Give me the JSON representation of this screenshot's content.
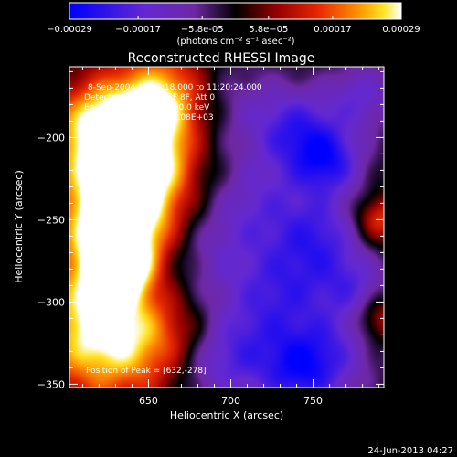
{
  "chart_data": {
    "type": "heatmap",
    "colorbar": {
      "ticks": [
        "-0.00029",
        "-0.00017",
        "-5.8e-05",
        "5.8e-05",
        "0.00017",
        "0.00029"
      ],
      "range": [
        -0.00029,
        0.00029
      ],
      "units": "(photons cm⁻² s⁻¹ asec⁻²)",
      "colormap": "blue-purple-black-red-yellow-white"
    },
    "title": "Reconstructed RHESSI Image",
    "info_lines": [
      "8-Sep-2004 11:17:18.000 to 11:20:24.000",
      "Detectors: 4F 5F 6F 7F 8F, Att 0",
      "Energy Range: 25.0 - 50.0 keV",
      "Clean    Total counts: 5.08E+03"
    ],
    "peak_label": "Position of Peak = [632,-278]",
    "peak": [
      632,
      -278
    ],
    "xlabel": "Heliocentric X (arcsec)",
    "ylabel": "Heliocentric Y (arcsec)",
    "xlim": [
      602,
      793
    ],
    "ylim": [
      -352,
      -157
    ],
    "x_ticks": [
      650,
      700,
      750
    ],
    "y_ticks": [
      -200,
      -250,
      -300,
      -350
    ],
    "footer_date": "24-Jun-2013 04:27",
    "blobs": [
      {
        "x": 632,
        "y": -278,
        "v": 1.0,
        "s": 12
      },
      {
        "x": 628,
        "y": -260,
        "v": 0.8,
        "s": 20
      },
      {
        "x": 622,
        "y": -300,
        "v": 0.7,
        "s": 22
      },
      {
        "x": 625,
        "y": -235,
        "v": 0.65,
        "s": 22
      },
      {
        "x": 640,
        "y": -200,
        "v": 0.7,
        "s": 24
      },
      {
        "x": 618,
        "y": -195,
        "v": 0.7,
        "s": 20
      },
      {
        "x": 660,
        "y": -175,
        "v": 0.75,
        "s": 20
      },
      {
        "x": 650,
        "y": -245,
        "v": 0.45,
        "s": 22
      },
      {
        "x": 655,
        "y": -215,
        "v": 0.35,
        "s": 18
      },
      {
        "x": 612,
        "y": -330,
        "v": 0.55,
        "s": 26
      },
      {
        "x": 645,
        "y": -330,
        "v": 0.4,
        "s": 22
      },
      {
        "x": 670,
        "y": -320,
        "v": 0.25,
        "s": 18
      },
      {
        "x": 790,
        "y": -250,
        "v": 0.55,
        "s": 10
      },
      {
        "x": 790,
        "y": -310,
        "v": 0.45,
        "s": 10
      },
      {
        "x": 700,
        "y": -180,
        "v": -0.3,
        "s": 22
      },
      {
        "x": 740,
        "y": -195,
        "v": -0.65,
        "s": 18
      },
      {
        "x": 760,
        "y": -215,
        "v": -0.7,
        "s": 15
      },
      {
        "x": 780,
        "y": -175,
        "v": -0.5,
        "s": 15
      },
      {
        "x": 720,
        "y": -240,
        "v": -0.45,
        "s": 22
      },
      {
        "x": 755,
        "y": -260,
        "v": -0.55,
        "s": 18
      },
      {
        "x": 690,
        "y": -270,
        "v": -0.35,
        "s": 22
      },
      {
        "x": 735,
        "y": -290,
        "v": -0.5,
        "s": 20
      },
      {
        "x": 710,
        "y": -320,
        "v": -0.45,
        "s": 22
      },
      {
        "x": 760,
        "y": -330,
        "v": -0.5,
        "s": 20
      },
      {
        "x": 740,
        "y": -345,
        "v": -0.6,
        "s": 18
      },
      {
        "x": 690,
        "y": -340,
        "v": -0.4,
        "s": 18
      },
      {
        "x": 775,
        "y": -290,
        "v": -0.45,
        "s": 15
      }
    ]
  }
}
